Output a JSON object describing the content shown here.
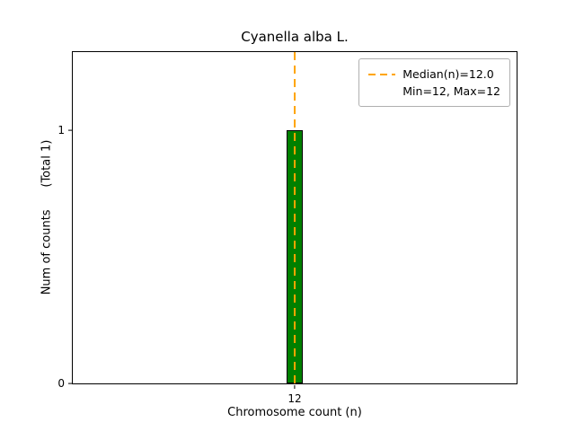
{
  "chart_data": {
    "type": "bar",
    "title": "Cyanella alba L.",
    "xlabel": "Chromosome count (n)",
    "ylabel": "Num of counts      (Total 1)",
    "categories": [
      "12"
    ],
    "values": [
      1
    ],
    "total_counts": 1,
    "ylim": [
      0,
      1.31
    ],
    "ytick_labels": [
      "0",
      "1"
    ],
    "xtick_labels": [
      "12"
    ],
    "median": 12.0,
    "min": 12,
    "max": 12,
    "legend": {
      "position": "upper right",
      "entries": [
        "Median(n)=12.0",
        "Min=12, Max=12"
      ]
    },
    "grid": false,
    "colors": {
      "bar": "#008000",
      "bar_edge": "#000000",
      "median_line": "#FFA500"
    }
  }
}
